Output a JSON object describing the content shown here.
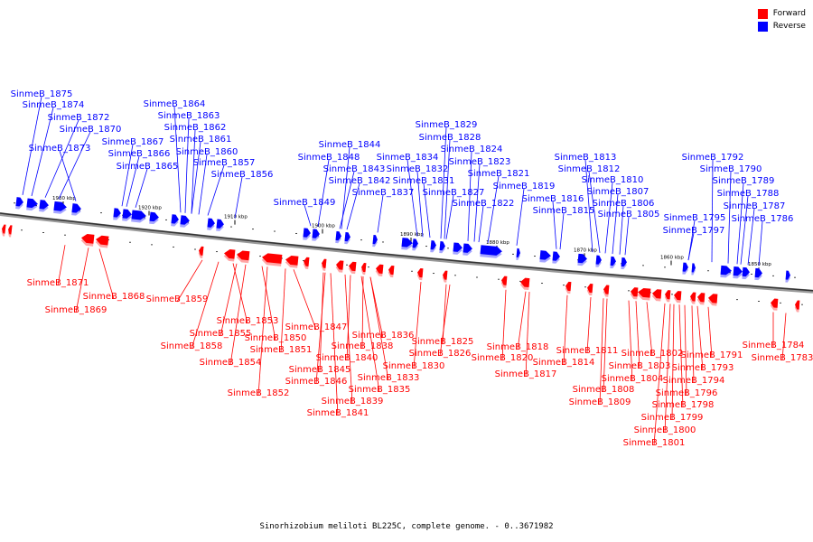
{
  "colors": {
    "forward": "#ff0000",
    "reverse": "#0000ff",
    "backbone": "#888888"
  },
  "legend": {
    "forward_label": "Forward",
    "reverse_label": "Reverse"
  },
  "caption": "Sinorhizobium meliloti BL225C, complete genome. - 0..3671982",
  "kbp_labels": [
    "1930 kbp",
    "1920 kbp",
    "1910 kbp",
    "1900 kbp",
    "1890 kbp",
    "1880 kbp",
    "1870 kbp",
    "1860 kbp",
    "1850 kbp"
  ],
  "reverse_labels": [
    "SinmeB_1875",
    "SinmeB_1874",
    "SinmeB_1872",
    "SinmeB_1870",
    "SinmeB_1873",
    "SinmeB_1864",
    "SinmeB_1863",
    "SinmeB_1862",
    "SinmeB_1861",
    "SinmeB_1867",
    "SinmeB_1866",
    "SinmeB_1860",
    "SinmeB_1865",
    "SinmeB_1857",
    "SinmeB_1856",
    "SinmeB_1844",
    "SinmeB_1848",
    "SinmeB_1843",
    "SinmeB_1842",
    "SinmeB_1837",
    "SinmeB_1849",
    "SinmeB_1829",
    "SinmeB_1828",
    "SinmeB_1824",
    "SinmeB_1834",
    "SinmeB_1823",
    "SinmeB_1832",
    "SinmeB_1821",
    "SinmeB_1831",
    "SinmeB_1827",
    "SinmeB_1819",
    "SinmeB_1822",
    "SinmeB_1813",
    "SinmeB_1812",
    "SinmeB_1810",
    "SinmeB_1816",
    "SinmeB_1807",
    "SinmeB_1806",
    "SinmeB_1815",
    "SinmeB_1805",
    "SinmeB_1792",
    "SinmeB_1790",
    "SinmeB_1789",
    "SinmeB_1788",
    "SinmeB_1787",
    "SinmeB_1795",
    "SinmeB_1786",
    "SinmeB_1797"
  ],
  "forward_labels": [
    "SinmeB_1871",
    "SinmeB_1868",
    "SinmeB_1869",
    "SinmeB_1859",
    "SinmeB_1853",
    "SinmeB_1855",
    "SinmeB_1850",
    "SinmeB_1847",
    "SinmeB_1858",
    "SinmeB_1851",
    "SinmeB_1854",
    "SinmeB_1852",
    "SinmeB_1836",
    "SinmeB_1838",
    "SinmeB_1840",
    "SinmeB_1845",
    "SinmeB_1846",
    "SinmeB_1833",
    "SinmeB_1835",
    "SinmeB_1839",
    "SinmeB_1841",
    "SinmeB_1825",
    "SinmeB_1826",
    "SinmeB_1830",
    "SinmeB_1818",
    "SinmeB_1820",
    "SinmeB_1817",
    "SinmeB_1814",
    "SinmeB_1811",
    "SinmeB_1802",
    "SinmeB_1803",
    "SinmeB_1804",
    "SinmeB_1808",
    "SinmeB_1809",
    "SinmeB_1791",
    "SinmeB_1793",
    "SinmeB_1794",
    "SinmeB_1796",
    "SinmeB_1798",
    "SinmeB_1799",
    "SinmeB_1800",
    "SinmeB_1801",
    "SinmeB_1784",
    "SinmeB_1783"
  ]
}
